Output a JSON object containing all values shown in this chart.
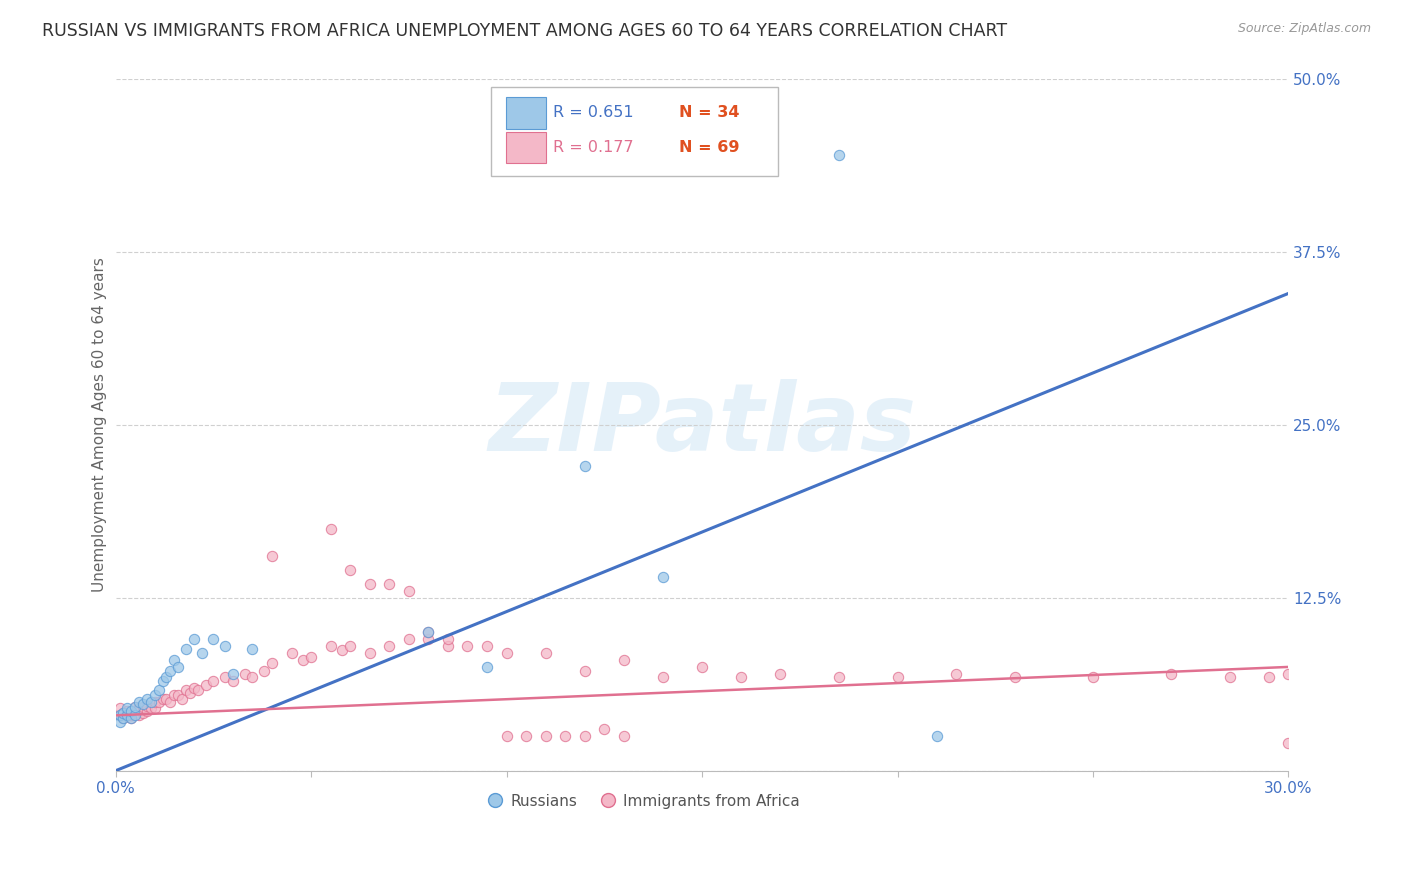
{
  "title": "RUSSIAN VS IMMIGRANTS FROM AFRICA UNEMPLOYMENT AMONG AGES 60 TO 64 YEARS CORRELATION CHART",
  "source": "Source: ZipAtlas.com",
  "ylabel": "Unemployment Among Ages 60 to 64 years",
  "xlim": [
    0.0,
    0.3
  ],
  "ylim": [
    0.0,
    0.5
  ],
  "yticks": [
    0.0,
    0.125,
    0.25,
    0.375,
    0.5
  ],
  "ytick_labels": [
    "",
    "12.5%",
    "25.0%",
    "37.5%",
    "50.0%"
  ],
  "xticks": [
    0.0,
    0.05,
    0.1,
    0.15,
    0.2,
    0.25,
    0.3
  ],
  "xtick_labels": [
    "0.0%",
    "",
    "",
    "",
    "",
    "",
    "30.0%"
  ],
  "legend_r1": "R = 0.651",
  "legend_n1": "N = 34",
  "legend_r2": "R = 0.177",
  "legend_n2": "N = 69",
  "russian_face_color": "#9ec8e8",
  "russian_edge_color": "#5b9bd5",
  "african_face_color": "#f4b8c8",
  "african_edge_color": "#e07090",
  "russian_line_color": "#4472c4",
  "african_line_color": "#e07090",
  "watermark": "ZIPatlas",
  "russian_scatter_x": [
    0.001,
    0.001,
    0.002,
    0.002,
    0.003,
    0.003,
    0.004,
    0.004,
    0.005,
    0.005,
    0.006,
    0.007,
    0.008,
    0.009,
    0.01,
    0.011,
    0.012,
    0.013,
    0.014,
    0.015,
    0.016,
    0.018,
    0.02,
    0.022,
    0.025,
    0.028,
    0.03,
    0.035,
    0.08,
    0.095,
    0.12,
    0.14,
    0.185,
    0.21
  ],
  "russian_scatter_y": [
    0.035,
    0.04,
    0.038,
    0.042,
    0.04,
    0.045,
    0.038,
    0.043,
    0.04,
    0.046,
    0.05,
    0.048,
    0.052,
    0.05,
    0.055,
    0.058,
    0.065,
    0.068,
    0.072,
    0.08,
    0.075,
    0.088,
    0.095,
    0.085,
    0.095,
    0.09,
    0.07,
    0.088,
    0.1,
    0.075,
    0.22,
    0.14,
    0.445,
    0.025
  ],
  "african_scatter_x": [
    0.001,
    0.001,
    0.002,
    0.002,
    0.003,
    0.003,
    0.004,
    0.004,
    0.005,
    0.005,
    0.006,
    0.006,
    0.007,
    0.007,
    0.008,
    0.008,
    0.009,
    0.01,
    0.01,
    0.011,
    0.012,
    0.013,
    0.014,
    0.015,
    0.016,
    0.017,
    0.018,
    0.019,
    0.02,
    0.021,
    0.023,
    0.025,
    0.028,
    0.03,
    0.033,
    0.035,
    0.038,
    0.04,
    0.045,
    0.048,
    0.05,
    0.055,
    0.058,
    0.06,
    0.065,
    0.07,
    0.075,
    0.08,
    0.085,
    0.09,
    0.095,
    0.1,
    0.11,
    0.12,
    0.13,
    0.14,
    0.15,
    0.16,
    0.17,
    0.185,
    0.2,
    0.215,
    0.23,
    0.25,
    0.27,
    0.285,
    0.295,
    0.3,
    0.3
  ],
  "african_scatter_y": [
    0.04,
    0.045,
    0.038,
    0.042,
    0.04,
    0.043,
    0.038,
    0.04,
    0.042,
    0.046,
    0.04,
    0.045,
    0.042,
    0.046,
    0.043,
    0.047,
    0.045,
    0.045,
    0.05,
    0.05,
    0.052,
    0.052,
    0.05,
    0.055,
    0.055,
    0.052,
    0.058,
    0.056,
    0.06,
    0.058,
    0.062,
    0.065,
    0.068,
    0.065,
    0.07,
    0.068,
    0.072,
    0.078,
    0.085,
    0.08,
    0.082,
    0.09,
    0.087,
    0.09,
    0.085,
    0.09,
    0.095,
    0.095,
    0.09,
    0.09,
    0.09,
    0.085,
    0.085,
    0.072,
    0.08,
    0.068,
    0.075,
    0.068,
    0.07,
    0.068,
    0.068,
    0.07,
    0.068,
    0.068,
    0.07,
    0.068,
    0.068,
    0.07,
    0.02
  ],
  "african_high_x": [
    0.04,
    0.055,
    0.06,
    0.065,
    0.07,
    0.075,
    0.08,
    0.085
  ],
  "african_high_y": [
    0.155,
    0.175,
    0.145,
    0.135,
    0.135,
    0.13,
    0.1,
    0.095
  ],
  "african_low_x": [
    0.1,
    0.105,
    0.11,
    0.115,
    0.12,
    0.125,
    0.13
  ],
  "african_low_y": [
    0.025,
    0.025,
    0.025,
    0.025,
    0.025,
    0.03,
    0.025
  ],
  "russian_trendline_x": [
    0.0,
    0.3
  ],
  "russian_trendline_y": [
    0.0,
    0.345
  ],
  "african_trendline_x": [
    0.0,
    0.3
  ],
  "african_trendline_y": [
    0.04,
    0.075
  ],
  "background_color": "#ffffff",
  "grid_color": "#d0d0d0",
  "title_fontsize": 12.5,
  "axis_fontsize": 11,
  "tick_fontsize": 11,
  "tick_color": "#4472c4",
  "source_color": "#999999",
  "ylabel_color": "#666666"
}
